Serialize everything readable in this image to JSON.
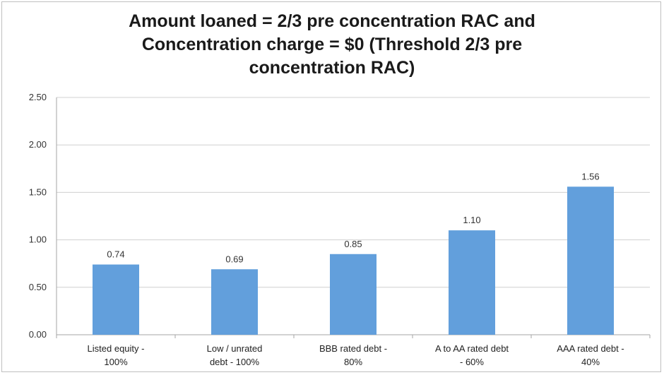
{
  "chart_data": {
    "type": "bar",
    "title_lines": [
      "Amount loaned = 2/3 pre concentration RAC and",
      "Concentration charge = $0 (Threshold 2/3 pre",
      "concentration RAC)"
    ],
    "categories": [
      [
        "Listed equity -",
        "100%"
      ],
      [
        "Low / unrated",
        "debt - 100%"
      ],
      [
        "BBB rated debt -",
        "80%"
      ],
      [
        "A to AA rated debt",
        "- 60%"
      ],
      [
        "AAA rated debt -",
        "40%"
      ]
    ],
    "values": [
      0.74,
      0.69,
      0.85,
      1.1,
      1.56
    ],
    "value_labels": [
      "0.74",
      "0.69",
      "0.85",
      "1.10",
      "1.56"
    ],
    "y_ticks": [
      "0.00",
      "0.50",
      "1.00",
      "1.50",
      "2.00",
      "2.50"
    ],
    "ylim": [
      0,
      2.5
    ],
    "grid": true,
    "bar_color": "#629fdc",
    "grid_color": "#d0d0d0"
  }
}
